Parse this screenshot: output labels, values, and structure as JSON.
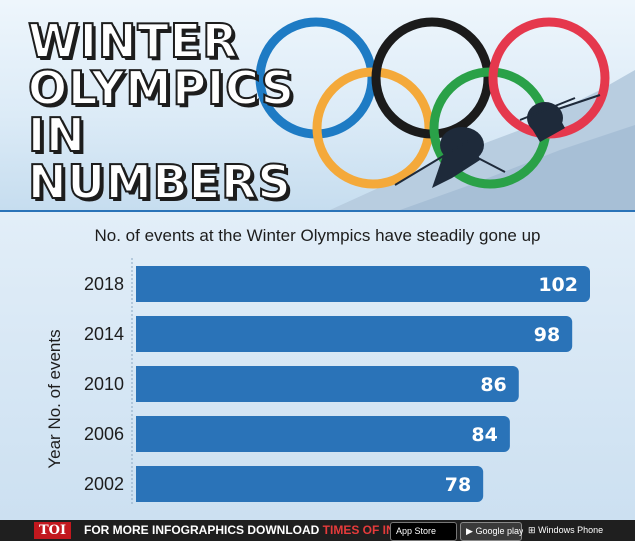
{
  "header": {
    "title_lines": [
      "WINTER",
      "OLYMPICS",
      "IN",
      "NUMBERS"
    ],
    "ring_colors": [
      "#1e7bc4",
      "#f4a93a",
      "#1b1b1b",
      "#2aa148",
      "#e5384d"
    ]
  },
  "chart_data": {
    "type": "bar",
    "orientation": "horizontal",
    "title": "No. of events at the Winter Olympics have steadily gone up",
    "ylabel": "Year No. of events",
    "categories": [
      "2018",
      "2014",
      "2010",
      "2006",
      "2002"
    ],
    "values": [
      102,
      98,
      86,
      84,
      78
    ],
    "xlim": [
      0,
      102
    ],
    "bar_color": "#2a73b8",
    "grid": false,
    "legend": "none"
  },
  "footer": {
    "logo": "TOI",
    "text": "FOR MORE  INFOGRAPHICS DOWNLOAD ",
    "app_name": "TIMES OF INDIA APP",
    "apple_badge": "App Store",
    "google_badge": "Google play",
    "windows_badge": "Windows Phone"
  }
}
